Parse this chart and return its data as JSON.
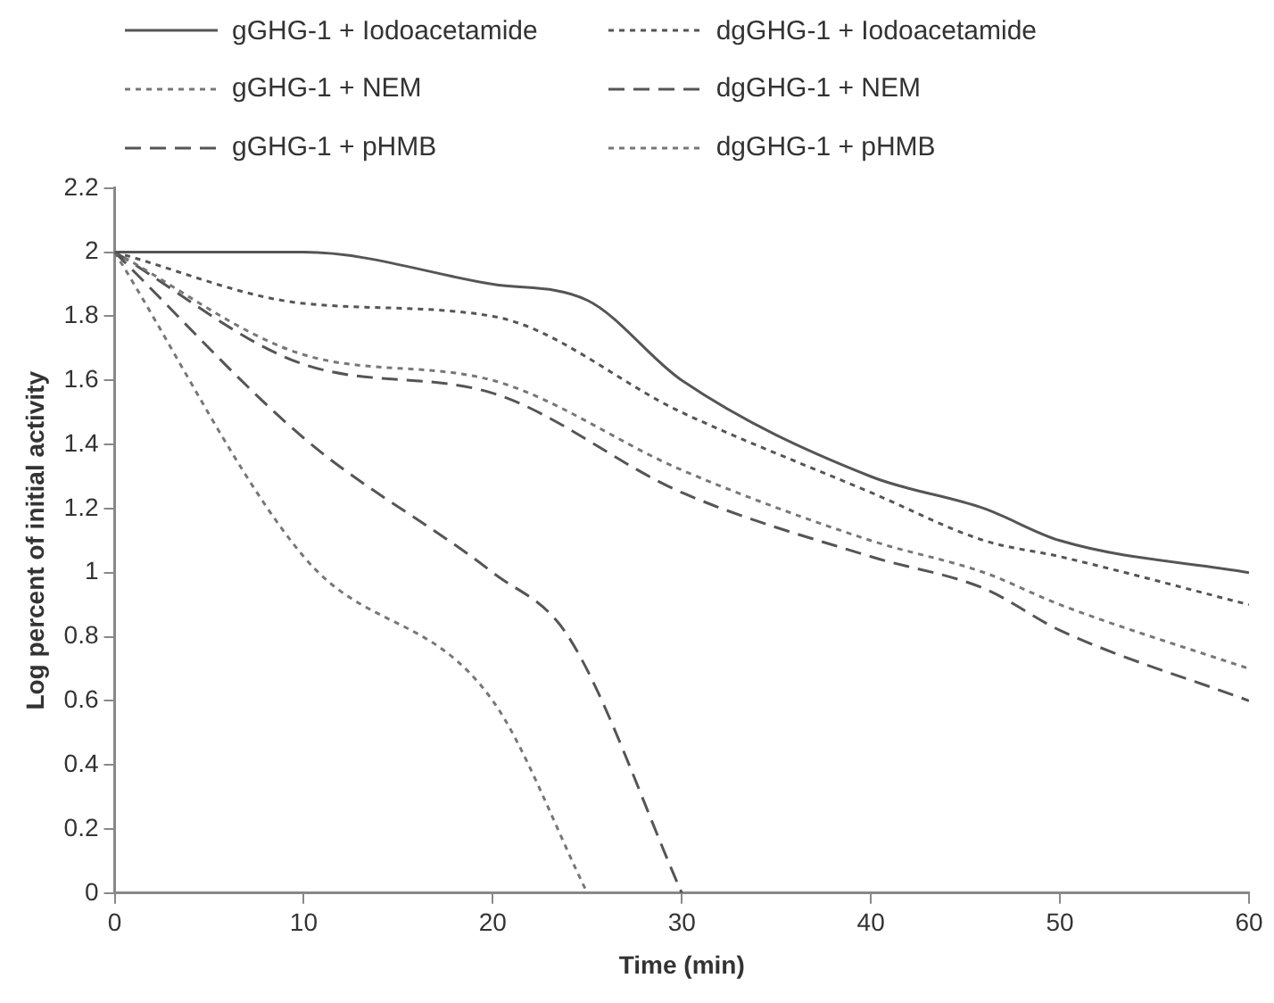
{
  "chart_data": {
    "type": "line",
    "xlabel": "Time (min)",
    "ylabel": "Log percent of initial activity",
    "xlim": [
      0,
      60
    ],
    "ylim": [
      0,
      2.2
    ],
    "xticks": [
      0,
      10,
      20,
      30,
      40,
      50,
      60
    ],
    "yticks": [
      0,
      0.2,
      0.4,
      0.6,
      0.8,
      1,
      1.2,
      1.4,
      1.6,
      1.8,
      2,
      2.2
    ],
    "grid": false,
    "legend": "top",
    "marker": "none",
    "series": [
      {
        "name": "gGHG-1 + Iodoacetamide",
        "color": "#555555",
        "line_style": "solid",
        "x": [
          0,
          10,
          20,
          25,
          30,
          40,
          46,
          50,
          60
        ],
        "values": [
          2,
          2,
          1.9,
          1.85,
          1.6,
          1.3,
          1.2,
          1.1,
          1
        ]
      },
      {
        "name": "dgGHG-1 + Iodoacetamide",
        "color": "#555555",
        "line_style": "dotted",
        "x": [
          0,
          10,
          20,
          30,
          40,
          46,
          50,
          60
        ],
        "values": [
          2,
          1.84,
          1.8,
          1.5,
          1.25,
          1.1,
          1.05,
          0.9
        ]
      },
      {
        "name": "gGHG-1 + NEM",
        "color": "#777777",
        "line_style": "dotted",
        "x": [
          0,
          10,
          20,
          30,
          40,
          46,
          50,
          60
        ],
        "values": [
          2,
          1.68,
          1.6,
          1.32,
          1.1,
          1,
          0.9,
          0.7
        ]
      },
      {
        "name": "dgGHG-1 + NEM",
        "color": "#555555",
        "line_style": "dashed",
        "x": [
          0,
          10,
          20,
          30,
          40,
          46,
          50,
          60
        ],
        "values": [
          2,
          1.65,
          1.56,
          1.25,
          1.05,
          0.95,
          0.82,
          0.6
        ]
      },
      {
        "name": "gGHG-1 + pHMB",
        "color": "#555555",
        "line_style": "dashed",
        "x": [
          0,
          10,
          20,
          24,
          30
        ],
        "values": [
          2,
          1.42,
          1,
          0.8,
          0
        ]
      },
      {
        "name": "dgGHG-1 + pHMB",
        "color": "#777777",
        "line_style": "dotted",
        "x": [
          0,
          10,
          20,
          25
        ],
        "values": [
          2,
          1.05,
          0.6,
          0
        ]
      }
    ]
  }
}
